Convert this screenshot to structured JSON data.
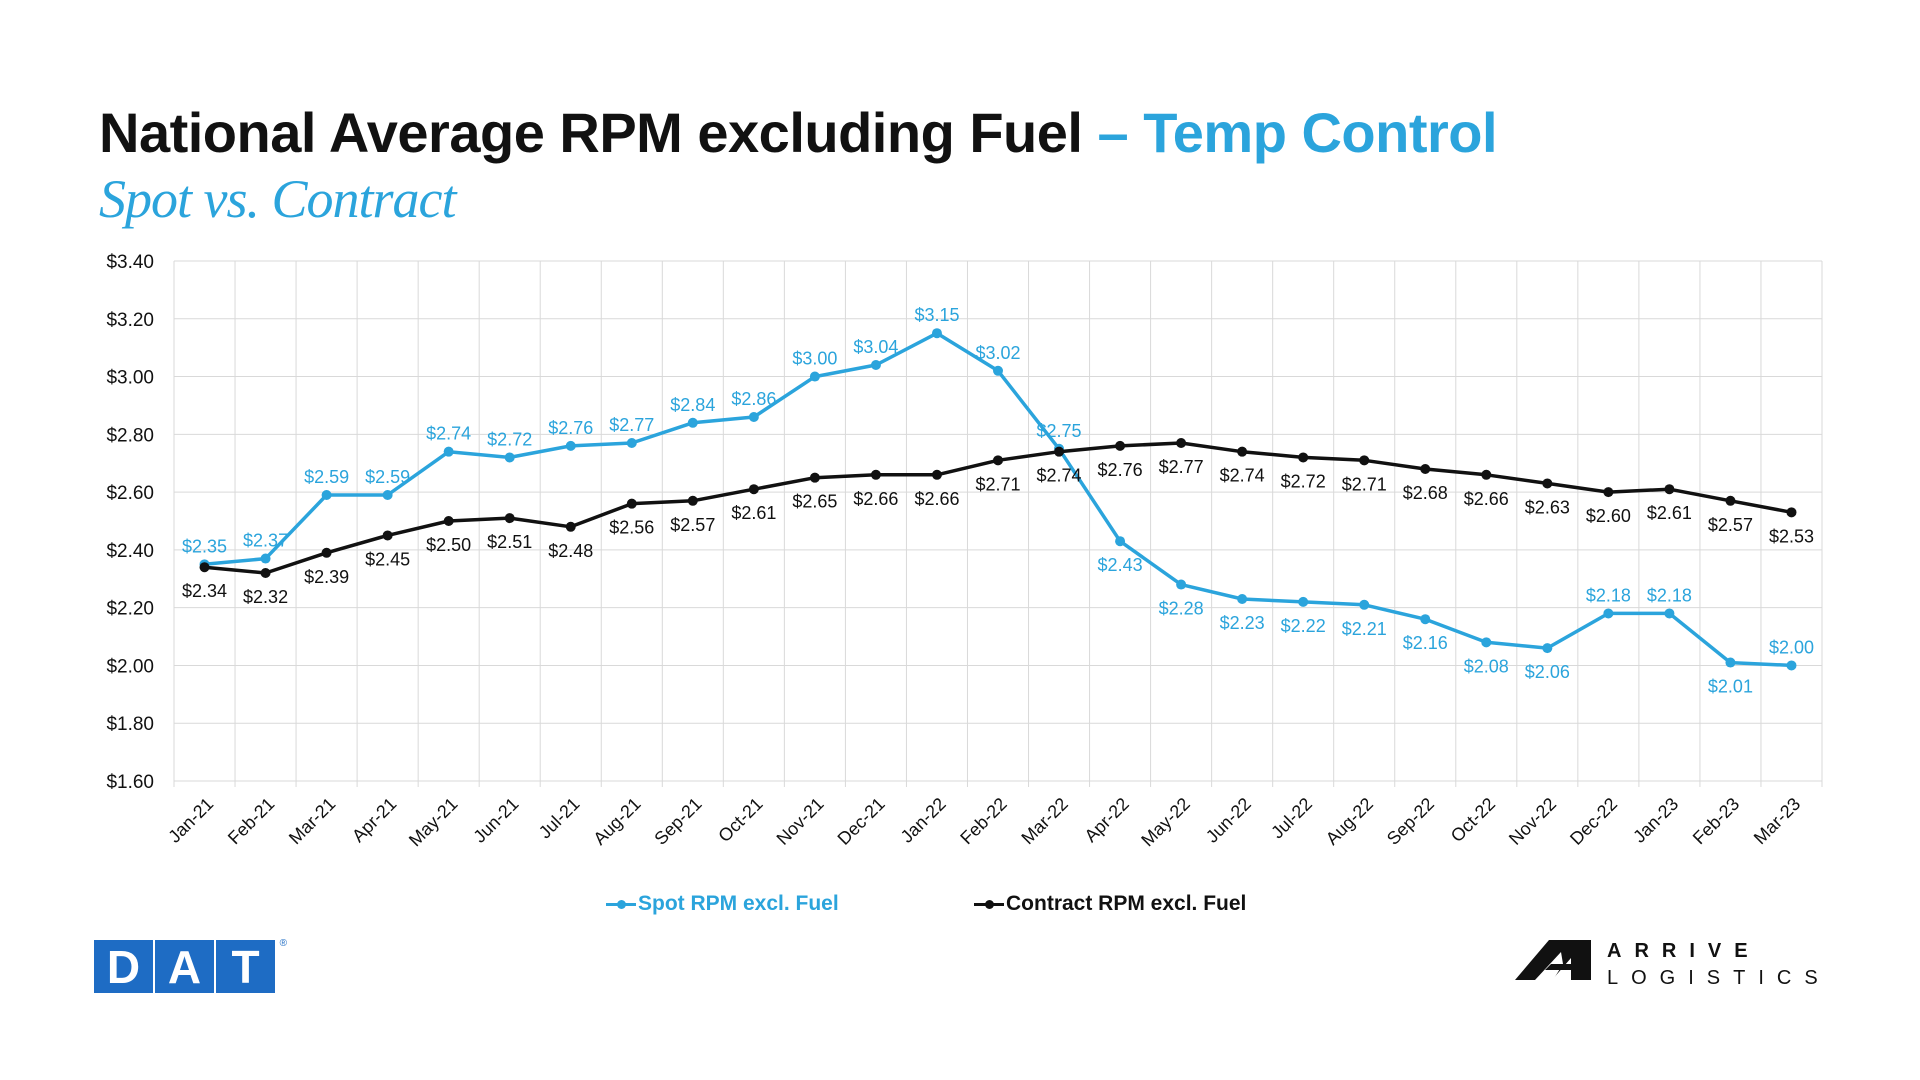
{
  "header": {
    "title_main": "National Average RPM excluding Fuel",
    "title_accent": "– Temp Control",
    "subtitle": "Spot vs. Contract"
  },
  "colors": {
    "spot": "#2ba4dc",
    "contract": "#111111",
    "grid": "#d9d9d9",
    "dat_blue": "#1e6cc4"
  },
  "chart_data": {
    "type": "line",
    "title": "National Average RPM excluding Fuel – Temp Control",
    "subtitle": "Spot vs. Contract",
    "categories": [
      "Jan-21",
      "Feb-21",
      "Mar-21",
      "Apr-21",
      "May-21",
      "Jun-21",
      "Jul-21",
      "Aug-21",
      "Sep-21",
      "Oct-21",
      "Nov-21",
      "Dec-21",
      "Jan-22",
      "Feb-22",
      "Mar-22",
      "Apr-22",
      "May-22",
      "Jun-22",
      "Jul-22",
      "Aug-22",
      "Sep-22",
      "Oct-22",
      "Nov-22",
      "Dec-22",
      "Jan-23",
      "Feb-23",
      "Mar-23"
    ],
    "series": [
      {
        "name": "Spot RPM excl. Fuel",
        "color": "#2ba4dc",
        "values": [
          2.35,
          2.37,
          2.59,
          2.59,
          2.74,
          2.72,
          2.76,
          2.77,
          2.84,
          2.86,
          3.0,
          3.04,
          3.15,
          3.02,
          2.75,
          2.43,
          2.28,
          2.23,
          2.22,
          2.21,
          2.16,
          2.08,
          2.06,
          2.18,
          2.18,
          2.01,
          2.0
        ],
        "labels": [
          "$2.35",
          "$2.37",
          "$2.59",
          "$2.59",
          "$2.74",
          "$2.72",
          "$2.76",
          "$2.77",
          "$2.84",
          "$2.86",
          "$3.00",
          "$3.04",
          "$3.15",
          "$3.02",
          "$2.75",
          "$2.43",
          "$2.28",
          "$2.23",
          "$2.22",
          "$2.21",
          "$2.16",
          "$2.08",
          "$2.06",
          "$2.18",
          "$2.18",
          "$2.01",
          "$2.00"
        ],
        "label_pos": [
          "above",
          "above",
          "above",
          "above",
          "above",
          "above",
          "above",
          "above",
          "above",
          "above",
          "above",
          "above",
          "above",
          "above",
          "above",
          "below",
          "below",
          "below",
          "below",
          "below",
          "below",
          "below",
          "below",
          "above",
          "above",
          "below",
          "above"
        ]
      },
      {
        "name": "Contract RPM excl. Fuel",
        "color": "#111111",
        "values": [
          2.34,
          2.32,
          2.39,
          2.45,
          2.5,
          2.51,
          2.48,
          2.56,
          2.57,
          2.61,
          2.65,
          2.66,
          2.66,
          2.71,
          2.74,
          2.76,
          2.77,
          2.74,
          2.72,
          2.71,
          2.68,
          2.66,
          2.63,
          2.6,
          2.61,
          2.57,
          2.53
        ],
        "labels": [
          "$2.34",
          "$2.32",
          "$2.39",
          "$2.45",
          "$2.50",
          "$2.51",
          "$2.48",
          "$2.56",
          "$2.57",
          "$2.61",
          "$2.65",
          "$2.66",
          "$2.66",
          "$2.71",
          "$2.74",
          "$2.76",
          "$2.77",
          "$2.74",
          "$2.72",
          "$2.71",
          "$2.68",
          "$2.66",
          "$2.63",
          "$2.60",
          "$2.61",
          "$2.57",
          "$2.53"
        ],
        "label_pos": [
          "below",
          "below",
          "below",
          "below",
          "below",
          "below",
          "below",
          "below",
          "below",
          "below",
          "below",
          "below",
          "below",
          "below",
          "below",
          "below",
          "below",
          "below",
          "below",
          "below",
          "below",
          "below",
          "below",
          "below",
          "below",
          "below",
          "below"
        ]
      }
    ],
    "ylim": [
      1.6,
      3.4
    ],
    "yticks": [
      3.4,
      3.2,
      3.0,
      2.8,
      2.6,
      2.4,
      2.2,
      2.0,
      1.8,
      1.6
    ],
    "ytick_labels": [
      "$3.40",
      "$3.20",
      "$3.00",
      "$2.80",
      "$2.60",
      "$2.40",
      "$2.20",
      "$2.00",
      "$1.80",
      "$1.60"
    ],
    "grid": true,
    "legend_position": "bottom"
  },
  "logos": {
    "dat_letters": [
      "D",
      "A",
      "T"
    ],
    "dat_registered": "®",
    "arrive_word1": "ARRIVE",
    "arrive_word2": "LOGISTICS"
  }
}
